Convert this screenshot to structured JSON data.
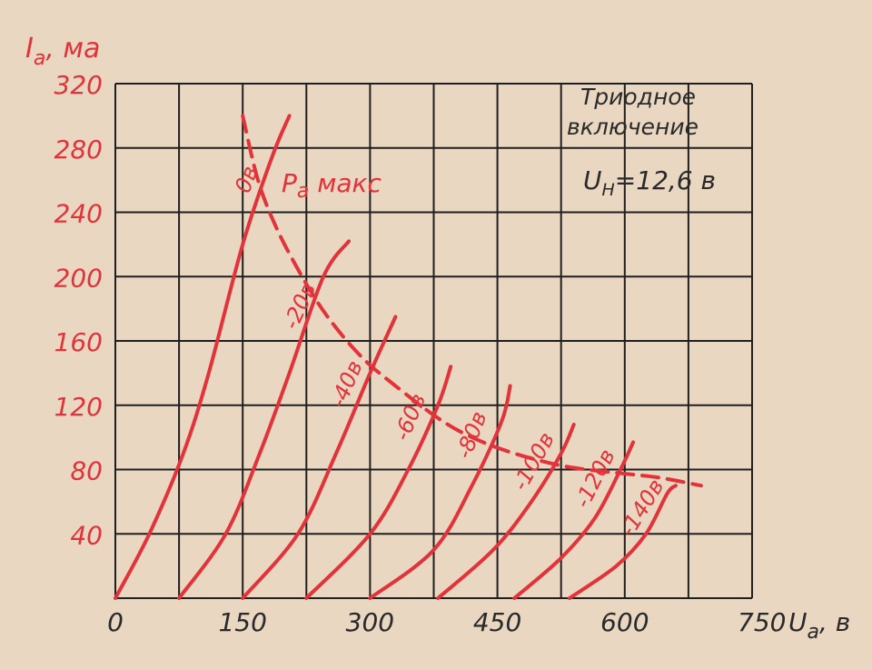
{
  "colors": {
    "paper": "#ead7c1",
    "grid": "#1f1f1f",
    "curve": "#e2323a",
    "text_red": "#e2323a",
    "text_black": "#2a2a2a"
  },
  "chart_data": {
    "type": "line",
    "ylabel_main": "I",
    "ylabel_sub": "a",
    "ylabel_unit": ", ма",
    "xlabel_main": "U",
    "xlabel_sub": "a",
    "xlabel_unit": ", в",
    "annotation_title_line1": "Триодное",
    "annotation_title_line2": "включение",
    "heater_label_main": "U",
    "heater_label_sub": "Н",
    "heater_label_value": "=12,6 в",
    "pmax_label_main": "P",
    "pmax_label_sub": "а",
    "pmax_label_rest": " макс",
    "xlim": [
      0,
      750
    ],
    "ylim": [
      0,
      320
    ],
    "x_ticks": [
      0,
      150,
      300,
      450,
      600
    ],
    "x_last_tick": "750",
    "y_ticks": [
      40,
      80,
      120,
      160,
      200,
      240,
      280,
      320
    ],
    "grid": true,
    "series": [
      {
        "name": "0в",
        "points": [
          [
            0,
            0
          ],
          [
            40,
            40
          ],
          [
            80,
            90
          ],
          [
            110,
            140
          ],
          [
            150,
            220
          ],
          [
            185,
            275
          ],
          [
            205,
            300
          ]
        ]
      },
      {
        "name": "-20в",
        "points": [
          [
            75,
            0
          ],
          [
            130,
            40
          ],
          [
            170,
            90
          ],
          [
            205,
            140
          ],
          [
            245,
            200
          ],
          [
            275,
            222
          ]
        ]
      },
      {
        "name": "-40в",
        "points": [
          [
            150,
            0
          ],
          [
            215,
            40
          ],
          [
            260,
            90
          ],
          [
            300,
            140
          ],
          [
            330,
            175
          ]
        ]
      },
      {
        "name": "-60в",
        "points": [
          [
            225,
            0
          ],
          [
            300,
            40
          ],
          [
            345,
            80
          ],
          [
            380,
            120
          ],
          [
            395,
            144
          ]
        ]
      },
      {
        "name": "-80в",
        "points": [
          [
            300,
            0
          ],
          [
            375,
            30
          ],
          [
            420,
            70
          ],
          [
            455,
            110
          ],
          [
            465,
            132
          ]
        ]
      },
      {
        "name": "-100в",
        "points": [
          [
            380,
            0
          ],
          [
            445,
            30
          ],
          [
            490,
            60
          ],
          [
            525,
            90
          ],
          [
            540,
            108
          ]
        ]
      },
      {
        "name": "-120в",
        "points": [
          [
            470,
            0
          ],
          [
            525,
            25
          ],
          [
            565,
            50
          ],
          [
            595,
            80
          ],
          [
            610,
            97
          ]
        ]
      },
      {
        "name": "-140в",
        "points": [
          [
            535,
            0
          ],
          [
            590,
            20
          ],
          [
            625,
            40
          ],
          [
            650,
            65
          ],
          [
            660,
            70
          ]
        ]
      }
    ],
    "pmax_curve": {
      "name": "Ра макс",
      "points": [
        [
          150,
          300
        ],
        [
          168,
          260
        ],
        [
          190,
          230
        ],
        [
          220,
          200
        ],
        [
          250,
          175
        ],
        [
          290,
          150
        ],
        [
          330,
          132
        ],
        [
          380,
          112
        ],
        [
          420,
          100
        ],
        [
          470,
          90
        ],
        [
          530,
          82
        ],
        [
          590,
          78
        ],
        [
          640,
          75
        ],
        [
          690,
          70
        ]
      ]
    }
  }
}
